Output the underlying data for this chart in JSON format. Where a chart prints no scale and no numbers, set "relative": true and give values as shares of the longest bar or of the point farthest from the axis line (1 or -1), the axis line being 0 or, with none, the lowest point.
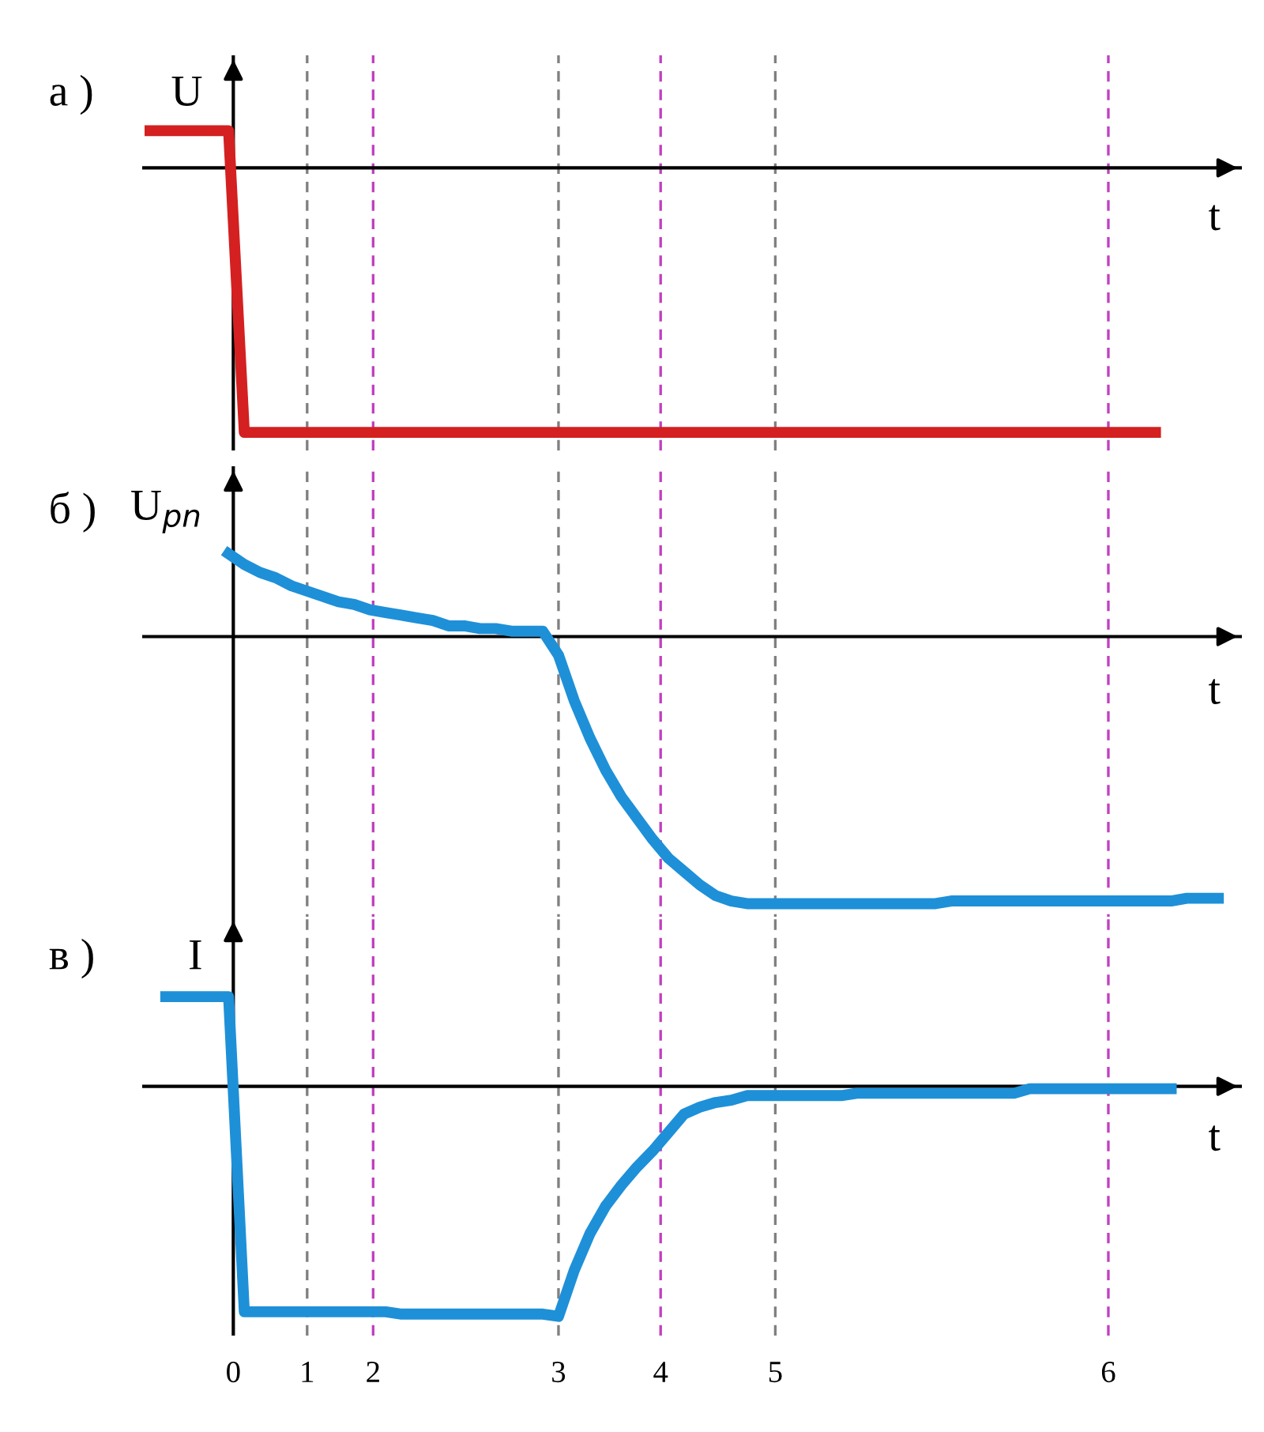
{
  "chart_data": [
    {
      "type": "line",
      "title": "а )",
      "ylabel": "U",
      "xlabel": "t",
      "relative": true,
      "line_style": "solid",
      "grid": "x",
      "categories": [
        null,
        null,
        null,
        null,
        null,
        null,
        null,
        null,
        null,
        null,
        null,
        null,
        null,
        null,
        null,
        null,
        null,
        null,
        null,
        null,
        null,
        null,
        null,
        null,
        null,
        null,
        null,
        null,
        null,
        null,
        null,
        null,
        null,
        null,
        null,
        null,
        null,
        null,
        null,
        null,
        null,
        null,
        null,
        null,
        null,
        null,
        null,
        null,
        null,
        null,
        null,
        null,
        null,
        null,
        null,
        null,
        null,
        null,
        null,
        null,
        null,
        null,
        null,
        null,
        null,
        null,
        null,
        null,
        null,
        null
      ],
      "series": [
        {
          "color": "#d42020",
          "values": [
            0.14,
            0.14,
            0.14,
            0.14,
            0.14,
            0.14,
            -1,
            -1,
            -1,
            -1,
            -1,
            -1,
            -1,
            -1,
            -1,
            -1,
            -1,
            -1,
            -1,
            -1,
            -1,
            -1,
            -1,
            -1,
            -1,
            -1,
            -1,
            -1,
            -1,
            -1,
            -1,
            -1,
            -1,
            -1,
            -1,
            -1,
            -1,
            -1,
            -1,
            -1,
            -1,
            -1,
            -1,
            -1,
            -1,
            -1,
            -1,
            -1,
            -1,
            -1,
            -1,
            -1,
            -1,
            -1,
            -1,
            -1,
            -1,
            -1,
            -1,
            -1,
            -1,
            -1,
            -1,
            -1,
            -1,
            null,
            null,
            null,
            null,
            null
          ]
        }
      ]
    },
    {
      "type": "line",
      "title": "б )",
      "ylabel": "U$_{pn}$",
      "xlabel": "t",
      "relative": true,
      "line_style": "solid",
      "grid": "x",
      "categories": [
        null,
        null,
        null,
        null,
        null,
        null,
        null,
        null,
        null,
        null,
        null,
        null,
        null,
        null,
        null,
        null,
        null,
        null,
        null,
        null,
        null,
        null,
        null,
        null,
        null,
        null,
        null,
        null,
        null,
        null,
        null,
        null,
        null,
        null,
        null,
        null,
        null,
        null,
        null,
        null,
        null,
        null,
        null,
        null,
        null,
        null,
        null,
        null,
        null,
        null,
        null,
        null,
        null,
        null,
        null,
        null,
        null,
        null,
        null,
        null,
        null,
        null,
        null,
        null,
        null,
        null,
        null,
        null,
        null,
        null
      ],
      "series": [
        {
          "color": "#1e90d8",
          "values": [
            null,
            null,
            null,
            null,
            null,
            0.31,
            0.27,
            0.24,
            0.22,
            0.19,
            0.17,
            0.15,
            0.13,
            0.12,
            0.1,
            0.09,
            0.08,
            0.07,
            0.06,
            0.04,
            0.04,
            0.03,
            0.03,
            0.02,
            0.02,
            0.02,
            -0.07,
            -0.24,
            -0.38,
            -0.5,
            -0.6,
            -0.68,
            -0.76,
            -0.83,
            -0.88,
            -0.93,
            -0.97,
            -0.99,
            -1,
            -1,
            -1,
            -1,
            -1,
            -1,
            -1,
            -1,
            -1,
            -1,
            -1,
            -1,
            -1,
            -0.99,
            -0.99,
            -0.99,
            -0.99,
            -0.99,
            -0.99,
            -0.99,
            -0.99,
            -0.99,
            -0.99,
            -0.99,
            -0.99,
            -0.99,
            -0.99,
            -0.99,
            -0.98,
            -0.98,
            -0.98,
            null
          ]
        }
      ]
    },
    {
      "type": "line",
      "title": "в )",
      "ylabel": "I",
      "xlabel": "t",
      "relative": true,
      "line_style": "solid",
      "grid": "x",
      "categories": [
        null,
        null,
        null,
        null,
        null,
        null,
        null,
        null,
        null,
        null,
        null,
        null,
        null,
        null,
        null,
        null,
        null,
        null,
        null,
        null,
        null,
        null,
        null,
        null,
        null,
        null,
        null,
        null,
        null,
        null,
        null,
        null,
        null,
        null,
        null,
        null,
        null,
        null,
        null,
        null,
        null,
        null,
        null,
        null,
        null,
        null,
        null,
        null,
        null,
        null,
        null,
        null,
        null,
        null,
        null,
        null,
        null,
        null,
        null,
        null,
        null,
        null,
        null,
        null,
        null,
        null,
        null,
        null,
        null,
        null
      ],
      "series": [
        {
          "color": "#1e90d8",
          "values": [
            null,
            0.39,
            0.39,
            0.39,
            0.39,
            0.39,
            -0.98,
            -0.98,
            -0.98,
            -0.98,
            -0.98,
            -0.98,
            -0.98,
            -0.98,
            -0.98,
            -0.98,
            -0.99,
            -0.99,
            -0.99,
            -0.99,
            -0.99,
            -0.99,
            -0.99,
            -0.99,
            -0.99,
            -0.99,
            -1,
            -0.8,
            -0.64,
            -0.52,
            -0.43,
            -0.35,
            -0.28,
            -0.2,
            -0.12,
            -0.09,
            -0.07,
            -0.06,
            -0.04,
            -0.04,
            -0.04,
            -0.04,
            -0.04,
            -0.04,
            -0.04,
            -0.03,
            -0.03,
            -0.03,
            -0.03,
            -0.03,
            -0.03,
            -0.03,
            -0.03,
            -0.03,
            -0.03,
            -0.03,
            -0.01,
            -0.01,
            -0.01,
            -0.01,
            -0.01,
            -0.01,
            -0.01,
            -0.01,
            -0.01,
            -0.01,
            null,
            null,
            null,
            null
          ]
        }
      ],
      "annotations": [
        "0",
        "1",
        "2",
        "3",
        "4",
        "5",
        "6"
      ]
    }
  ]
}
